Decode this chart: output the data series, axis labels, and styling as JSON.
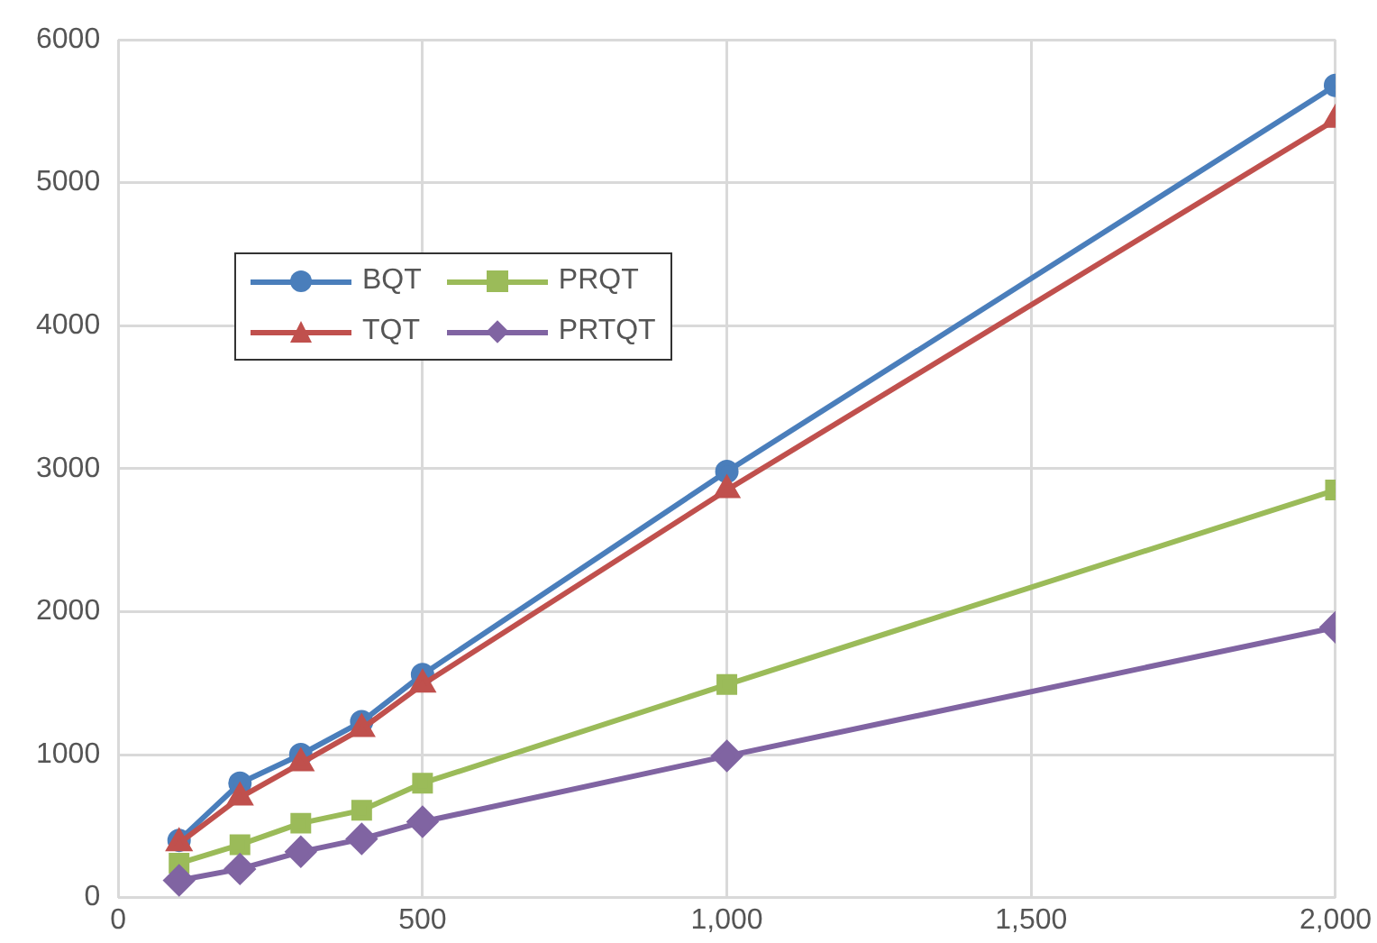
{
  "chart_data": {
    "type": "line",
    "x": [
      100,
      200,
      300,
      400,
      500,
      1000,
      2000
    ],
    "xlim": [
      0,
      2000
    ],
    "xticks": [
      0,
      {
        "value": 500,
        "label": "500"
      },
      {
        "value": 1000,
        "label": "1,000"
      },
      {
        "value": 1500,
        "label": "1,500"
      },
      {
        "value": 2000,
        "label": "2,000"
      }
    ],
    "ylim": [
      0,
      6000
    ],
    "yticks": [
      0,
      1000,
      2000,
      3000,
      4000,
      5000,
      6000
    ],
    "grid": true,
    "legend": "top left",
    "line_style": "solid",
    "series": [
      {
        "name": "BQT",
        "color": "#4a7ebb",
        "marker": "circle",
        "values": [
          400,
          800,
          1000,
          1230,
          1560,
          2980,
          5680
        ]
      },
      {
        "name": "PRQT",
        "color": "#9bbb59",
        "marker": "square",
        "values": [
          240,
          370,
          520,
          610,
          800,
          1490,
          2850
        ]
      },
      {
        "name": "TQT",
        "color": "#c0504d",
        "marker": "triangle",
        "values": [
          380,
          700,
          940,
          1180,
          1490,
          2850,
          5440
        ]
      },
      {
        "name": "PRTQT",
        "color": "#8064a2",
        "marker": "diamond",
        "values": [
          120,
          200,
          320,
          410,
          530,
          990,
          1890
        ]
      }
    ]
  }
}
